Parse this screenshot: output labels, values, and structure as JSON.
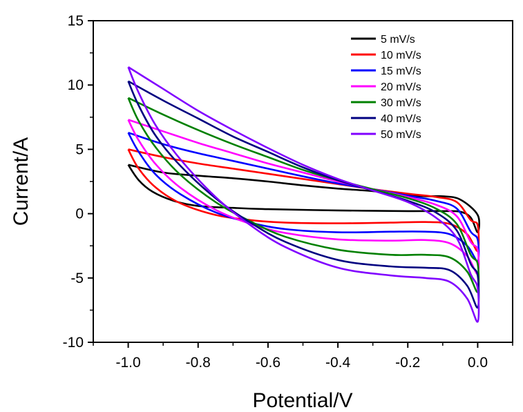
{
  "chart_data": {
    "type": "line",
    "title": "",
    "xlabel": "Potential/V",
    "ylabel": "Current/A",
    "xlim": [
      -1.1,
      0.1
    ],
    "ylim": [
      -10,
      15
    ],
    "xticks": [
      -1.0,
      -0.8,
      -0.6,
      -0.4,
      -0.2,
      0.0
    ],
    "xtick_labels": [
      "-1.0",
      "-0.8",
      "-0.6",
      "-0.4",
      "-0.2",
      "0.0"
    ],
    "yticks": [
      -10,
      -5,
      0,
      5,
      10,
      15
    ],
    "ytick_labels": [
      "-10",
      "-5",
      "0",
      "5",
      "10",
      "15"
    ],
    "grid": false,
    "legend_position": "top-right",
    "series": [
      {
        "name": "5 mV/s",
        "color": "#000000",
        "forward": [
          [
            -1.0,
            3.8
          ],
          [
            -0.9,
            3.2
          ],
          [
            -0.8,
            2.95
          ],
          [
            -0.7,
            2.75
          ],
          [
            -0.6,
            2.5
          ],
          [
            -0.5,
            2.2
          ],
          [
            -0.4,
            1.95
          ],
          [
            -0.3,
            1.75
          ],
          [
            -0.2,
            1.45
          ],
          [
            -0.15,
            1.35
          ],
          [
            -0.1,
            1.35
          ],
          [
            -0.05,
            1.1
          ],
          [
            0.0,
            -0.1
          ]
        ],
        "reverse": [
          [
            0.0,
            -1.45
          ],
          [
            -0.02,
            -0.3
          ],
          [
            -0.05,
            0.15
          ],
          [
            -0.1,
            0.2
          ],
          [
            -0.2,
            0.2
          ],
          [
            -0.4,
            0.25
          ],
          [
            -0.6,
            0.35
          ],
          [
            -0.7,
            0.45
          ],
          [
            -0.8,
            0.6
          ],
          [
            -0.87,
            1.0
          ],
          [
            -0.93,
            1.7
          ],
          [
            -0.97,
            2.6
          ],
          [
            -1.0,
            3.8
          ]
        ]
      },
      {
        "name": "10 mV/s",
        "color": "#ff0000",
        "forward": [
          [
            -1.0,
            5.0
          ],
          [
            -0.9,
            4.4
          ],
          [
            -0.8,
            3.9
          ],
          [
            -0.7,
            3.5
          ],
          [
            -0.6,
            3.1
          ],
          [
            -0.5,
            2.7
          ],
          [
            -0.4,
            2.3
          ],
          [
            -0.3,
            1.9
          ],
          [
            -0.2,
            1.55
          ],
          [
            -0.12,
            1.3
          ],
          [
            -0.06,
            0.9
          ],
          [
            -0.02,
            -0.5
          ],
          [
            0.0,
            -0.9
          ]
        ],
        "reverse": [
          [
            0.0,
            -2.9
          ],
          [
            -0.03,
            -1.6
          ],
          [
            -0.08,
            -0.8
          ],
          [
            -0.15,
            -0.65
          ],
          [
            -0.25,
            -0.7
          ],
          [
            -0.4,
            -0.75
          ],
          [
            -0.55,
            -0.7
          ],
          [
            -0.65,
            -0.5
          ],
          [
            -0.75,
            -0.1
          ],
          [
            -0.85,
            0.8
          ],
          [
            -0.92,
            2.0
          ],
          [
            -0.97,
            3.5
          ],
          [
            -1.0,
            5.0
          ]
        ]
      },
      {
        "name": "15 mV/s",
        "color": "#0000ff",
        "forward": [
          [
            -1.0,
            6.3
          ],
          [
            -0.9,
            5.4
          ],
          [
            -0.8,
            4.7
          ],
          [
            -0.7,
            4.1
          ],
          [
            -0.6,
            3.5
          ],
          [
            -0.5,
            2.9
          ],
          [
            -0.4,
            2.35
          ],
          [
            -0.3,
            1.9
          ],
          [
            -0.2,
            1.4
          ],
          [
            -0.12,
            1.0
          ],
          [
            -0.06,
            0.4
          ],
          [
            -0.02,
            -1.4
          ],
          [
            0.0,
            -2.0
          ]
        ],
        "reverse": [
          [
            0.0,
            -3.7
          ],
          [
            -0.03,
            -2.5
          ],
          [
            -0.08,
            -1.6
          ],
          [
            -0.15,
            -1.4
          ],
          [
            -0.25,
            -1.4
          ],
          [
            -0.4,
            -1.45
          ],
          [
            -0.55,
            -1.2
          ],
          [
            -0.65,
            -0.7
          ],
          [
            -0.75,
            0.1
          ],
          [
            -0.85,
            1.5
          ],
          [
            -0.92,
            3.0
          ],
          [
            -0.97,
            4.8
          ],
          [
            -1.0,
            6.3
          ]
        ]
      },
      {
        "name": "20 mV/s",
        "color": "#ff00ff",
        "forward": [
          [
            -1.0,
            7.3
          ],
          [
            -0.9,
            6.4
          ],
          [
            -0.8,
            5.5
          ],
          [
            -0.7,
            4.7
          ],
          [
            -0.6,
            3.9
          ],
          [
            -0.5,
            3.2
          ],
          [
            -0.4,
            2.5
          ],
          [
            -0.3,
            1.9
          ],
          [
            -0.2,
            1.3
          ],
          [
            -0.12,
            0.7
          ],
          [
            -0.06,
            -0.2
          ],
          [
            -0.02,
            -2.2
          ],
          [
            0.0,
            -2.8
          ]
        ],
        "reverse": [
          [
            0.0,
            -4.7
          ],
          [
            -0.03,
            -3.3
          ],
          [
            -0.08,
            -2.3
          ],
          [
            -0.15,
            -2.05
          ],
          [
            -0.25,
            -2.1
          ],
          [
            -0.4,
            -2.0
          ],
          [
            -0.55,
            -1.5
          ],
          [
            -0.65,
            -0.8
          ],
          [
            -0.75,
            0.3
          ],
          [
            -0.85,
            2.0
          ],
          [
            -0.92,
            3.8
          ],
          [
            -0.97,
            5.7
          ],
          [
            -1.0,
            7.3
          ]
        ]
      },
      {
        "name": "30 mV/s",
        "color": "#008000",
        "forward": [
          [
            -1.0,
            9.0
          ],
          [
            -0.9,
            7.7
          ],
          [
            -0.8,
            6.5
          ],
          [
            -0.7,
            5.4
          ],
          [
            -0.6,
            4.4
          ],
          [
            -0.5,
            3.4
          ],
          [
            -0.4,
            2.6
          ],
          [
            -0.3,
            1.9
          ],
          [
            -0.2,
            1.2
          ],
          [
            -0.12,
            0.4
          ],
          [
            -0.06,
            -0.8
          ],
          [
            -0.02,
            -3.2
          ],
          [
            0.0,
            -3.9
          ]
        ],
        "reverse": [
          [
            0.0,
            -6.1
          ],
          [
            -0.03,
            -4.5
          ],
          [
            -0.08,
            -3.4
          ],
          [
            -0.15,
            -3.2
          ],
          [
            -0.25,
            -3.2
          ],
          [
            -0.4,
            -2.8
          ],
          [
            -0.55,
            -1.8
          ],
          [
            -0.65,
            -0.6
          ],
          [
            -0.75,
            0.9
          ],
          [
            -0.85,
            3.0
          ],
          [
            -0.92,
            5.1
          ],
          [
            -0.97,
            7.2
          ],
          [
            -1.0,
            9.0
          ]
        ]
      },
      {
        "name": "40 mV/s",
        "color": "#000080",
        "forward": [
          [
            -1.0,
            10.3
          ],
          [
            -0.9,
            8.8
          ],
          [
            -0.8,
            7.4
          ],
          [
            -0.7,
            6.0
          ],
          [
            -0.6,
            4.8
          ],
          [
            -0.5,
            3.6
          ],
          [
            -0.4,
            2.6
          ],
          [
            -0.3,
            1.8
          ],
          [
            -0.2,
            1.0
          ],
          [
            -0.12,
            0.1
          ],
          [
            -0.06,
            -1.3
          ],
          [
            -0.02,
            -3.9
          ],
          [
            0.0,
            -4.8
          ]
        ],
        "reverse": [
          [
            0.0,
            -7.3
          ],
          [
            -0.03,
            -5.6
          ],
          [
            -0.08,
            -4.4
          ],
          [
            -0.15,
            -4.2
          ],
          [
            -0.25,
            -4.1
          ],
          [
            -0.4,
            -3.6
          ],
          [
            -0.55,
            -2.2
          ],
          [
            -0.65,
            -0.7
          ],
          [
            -0.75,
            1.2
          ],
          [
            -0.85,
            3.7
          ],
          [
            -0.92,
            6.0
          ],
          [
            -0.97,
            8.4
          ],
          [
            -1.0,
            10.3
          ]
        ]
      },
      {
        "name": "50 mV/s",
        "color": "#8000ff",
        "forward": [
          [
            -1.0,
            11.4
          ],
          [
            -0.9,
            9.7
          ],
          [
            -0.8,
            8.0
          ],
          [
            -0.7,
            6.5
          ],
          [
            -0.6,
            5.1
          ],
          [
            -0.5,
            3.8
          ],
          [
            -0.4,
            2.7
          ],
          [
            -0.3,
            1.8
          ],
          [
            -0.2,
            0.9
          ],
          [
            -0.12,
            -0.3
          ],
          [
            -0.06,
            -1.9
          ],
          [
            -0.02,
            -4.7
          ],
          [
            0.0,
            -5.8
          ]
        ],
        "reverse": [
          [
            0.0,
            -8.4
          ],
          [
            -0.03,
            -6.6
          ],
          [
            -0.08,
            -5.3
          ],
          [
            -0.15,
            -5.0
          ],
          [
            -0.25,
            -4.8
          ],
          [
            -0.4,
            -4.2
          ],
          [
            -0.55,
            -2.6
          ],
          [
            -0.65,
            -0.9
          ],
          [
            -0.75,
            1.3
          ],
          [
            -0.85,
            4.2
          ],
          [
            -0.92,
            6.8
          ],
          [
            -0.97,
            9.4
          ],
          [
            -1.0,
            11.4
          ]
        ]
      }
    ]
  }
}
